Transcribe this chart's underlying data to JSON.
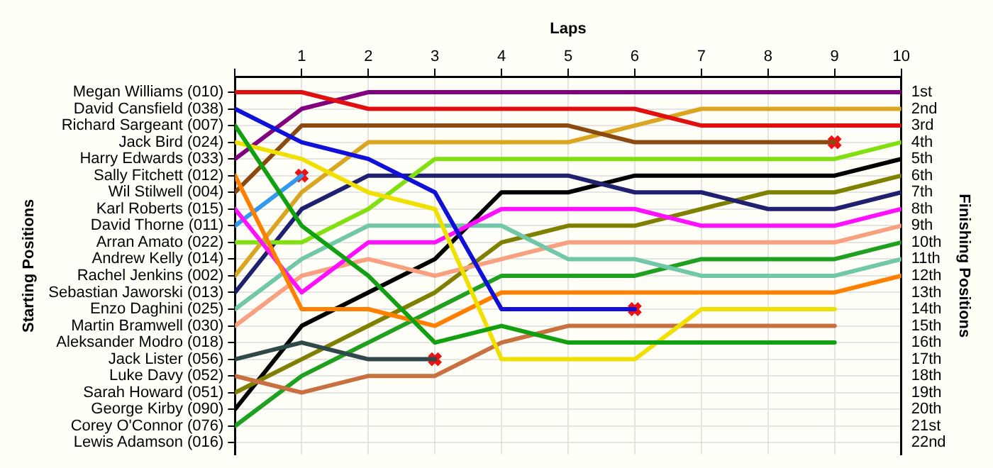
{
  "chart_data": {
    "type": "line",
    "xlabel": "Laps",
    "ylabel": "Finishing Positions",
    "annotations": [
      "Starting Positions"
    ],
    "x": [
      0,
      1,
      2,
      3,
      4,
      5,
      6,
      7,
      8,
      9,
      10
    ],
    "xlim": [
      0,
      10
    ],
    "xticks": [
      {
        "value": 0,
        "label": null
      },
      1,
      2,
      3,
      4,
      5,
      6,
      7,
      8,
      9,
      10
    ],
    "ylim": [
      22.7,
      0.1
    ],
    "y_categories": [
      "Megan Williams (010)",
      "David Cansfield (038)",
      "Richard Sargeant (007)",
      "Jack Bird (024)",
      "Harry Edwards (033)",
      "Sally Fitchett (012)",
      "Wil Stilwell (004)",
      "Karl Roberts (015)",
      "David Thorne (011)",
      "Arran Amato (022)",
      "Andrew Kelly (014)",
      "Rachel Jenkins (002)",
      "Sebastian Jaworski (013)",
      "Enzo Daghini (025)",
      "Martin Bramwell (030)",
      "Aleksander Modro (018)",
      "Jack Lister (056)",
      "Luke Davy (052)",
      "Sarah Howard (051)",
      "George Kirby (090)",
      "Corey O'Connor (076)",
      "Lewis Adamson (016)"
    ],
    "yticks": [
      {
        "value": 1,
        "label": "1st"
      },
      {
        "value": 2,
        "label": "2nd"
      },
      {
        "value": 3,
        "label": "3rd"
      },
      {
        "value": 4,
        "label": "4th"
      },
      {
        "value": 5,
        "label": "5th"
      },
      {
        "value": 6,
        "label": "6th"
      },
      {
        "value": 7,
        "label": "7th"
      },
      {
        "value": 8,
        "label": "8th"
      },
      {
        "value": 9,
        "label": "9th"
      },
      {
        "value": 10,
        "label": "10th"
      },
      {
        "value": 11,
        "label": "11th"
      },
      {
        "value": 12,
        "label": "12th"
      },
      {
        "value": 13,
        "label": "13th"
      },
      {
        "value": 14,
        "label": "14th"
      },
      {
        "value": 15,
        "label": "15th"
      },
      {
        "value": 16,
        "label": "16th"
      },
      {
        "value": 17,
        "label": "17th"
      },
      {
        "value": 18,
        "label": "18th"
      },
      {
        "value": 19,
        "label": "19th"
      },
      {
        "value": 20,
        "label": "20th"
      },
      {
        "value": 21,
        "label": "21st"
      },
      {
        "value": 22,
        "label": "22nd"
      }
    ],
    "grid": true,
    "legend": false,
    "marker": "none",
    "line_style": "solid",
    "series": [
      {
        "color": "#e01010",
        "values": [
          1,
          1,
          2,
          2,
          2,
          2,
          2,
          3,
          3,
          3,
          3
        ]
      },
      {
        "color": "#1010d8",
        "values": [
          2,
          4,
          5,
          7,
          14,
          14,
          14,
          null,
          null,
          null,
          null
        ]
      },
      {
        "color": "#10a010",
        "values": [
          3,
          9,
          12,
          16,
          15,
          16,
          16,
          16,
          16,
          16,
          null
        ]
      },
      {
        "color": "#f0e000",
        "values": [
          4,
          5,
          7,
          8,
          17,
          17,
          17,
          14,
          14,
          14,
          null
        ]
      },
      {
        "color": "#800080",
        "values": [
          5,
          2,
          1,
          1,
          1,
          1,
          1,
          1,
          1,
          1,
          1
        ]
      },
      {
        "color": "#ff8000",
        "values": [
          6,
          14,
          14,
          15,
          13,
          13,
          13,
          13,
          13,
          13,
          12
        ]
      },
      {
        "color": "#8b4a10",
        "values": [
          7,
          3,
          3,
          3,
          3,
          3,
          4,
          4,
          4,
          4,
          null
        ]
      },
      {
        "color": "#ff10ff",
        "values": [
          8,
          13,
          10,
          10,
          8,
          8,
          8,
          9,
          9,
          9,
          8
        ]
      },
      {
        "color": "#3399ee",
        "values": [
          9,
          6,
          null,
          null,
          null,
          null,
          null,
          null,
          null,
          null,
          null
        ]
      },
      {
        "color": "#80e010",
        "values": [
          10,
          10,
          8,
          5,
          5,
          5,
          5,
          5,
          5,
          5,
          4
        ]
      },
      {
        "color": "#daa520",
        "values": [
          12,
          7,
          4,
          4,
          4,
          4,
          3,
          2,
          2,
          2,
          2
        ]
      },
      {
        "color": "#202070",
        "values": [
          13,
          8,
          6,
          6,
          6,
          6,
          7,
          7,
          8,
          8,
          7
        ]
      },
      {
        "color": "#70c8a8",
        "values": [
          14,
          11,
          9,
          9,
          9,
          11,
          11,
          12,
          12,
          12,
          11
        ]
      },
      {
        "color": "#f8a080",
        "values": [
          15,
          12,
          11,
          12,
          11,
          10,
          10,
          10,
          10,
          10,
          9
        ]
      },
      {
        "color": "#304848",
        "values": [
          17,
          16,
          17,
          17,
          null,
          null,
          null,
          null,
          null,
          null,
          null
        ]
      },
      {
        "color": "#c87040",
        "values": [
          18,
          19,
          18,
          18,
          16,
          15,
          15,
          15,
          15,
          15,
          null
        ]
      },
      {
        "color": "#808000",
        "values": [
          19,
          17,
          15,
          13,
          10,
          9,
          9,
          8,
          7,
          7,
          6
        ]
      },
      {
        "color": "#000000",
        "values": [
          20,
          15,
          13,
          11,
          7,
          7,
          6,
          6,
          6,
          6,
          5
        ]
      },
      {
        "color": "#20a020",
        "values": [
          21,
          18,
          16,
          14,
          12,
          12,
          12,
          11,
          11,
          11,
          10
        ]
      },
      {
        "type": "scatter",
        "marker": "cross",
        "color": "#ee1111",
        "x": [
          1,
          3,
          6,
          9
        ],
        "values": [
          6,
          17,
          14,
          4
        ]
      }
    ]
  }
}
